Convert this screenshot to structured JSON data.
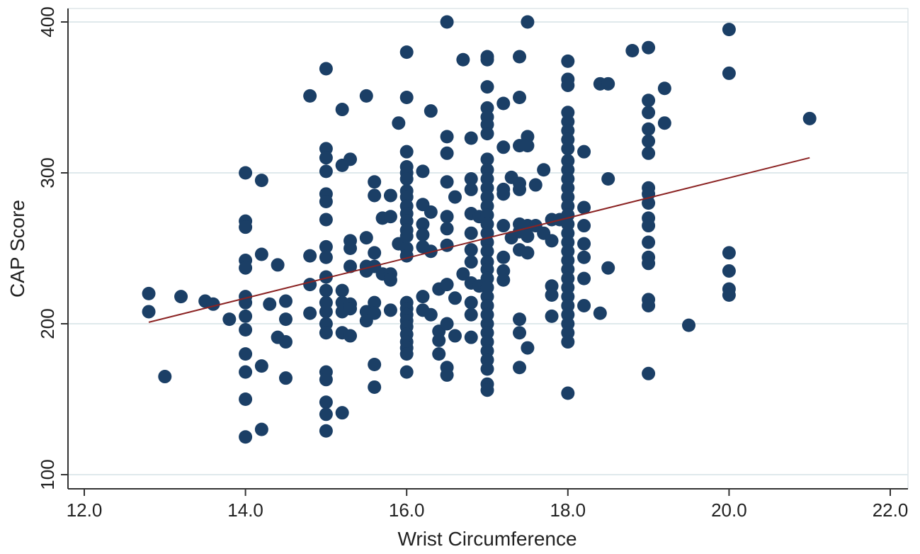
{
  "chart_data": {
    "type": "scatter",
    "title": "",
    "xlabel": "Wrist Circumference",
    "ylabel": "CAP Score",
    "xlim": [
      12.0,
      22.0
    ],
    "ylim": [
      100,
      400
    ],
    "xticks": [
      12.0,
      14.0,
      16.0,
      18.0,
      20.0,
      22.0
    ],
    "xtick_labels": [
      "12.0",
      "14.0",
      "16.0",
      "18.0",
      "20.0",
      "22.0"
    ],
    "yticks": [
      100,
      200,
      300,
      400
    ],
    "ytick_labels": [
      "100",
      "200",
      "300",
      "400"
    ],
    "grid": true,
    "legend": "none",
    "colors": {
      "points": "#1b3f66",
      "fit_line": "#8b2323",
      "grid": "#dfe9ec",
      "axis": "#333333"
    },
    "fit_line": {
      "x": [
        12.8,
        21.0
      ],
      "y": [
        201,
        310
      ]
    },
    "series": [
      {
        "points": [
          [
            12.8,
            220
          ],
          [
            12.8,
            208
          ],
          [
            13.0,
            165
          ],
          [
            13.2,
            218
          ],
          [
            13.5,
            215
          ],
          [
            13.6,
            213
          ],
          [
            13.8,
            203
          ],
          [
            14.0,
            300
          ],
          [
            14.0,
            268
          ],
          [
            14.0,
            264
          ],
          [
            14.0,
            242
          ],
          [
            14.0,
            237
          ],
          [
            14.0,
            218
          ],
          [
            14.0,
            214
          ],
          [
            14.0,
            205
          ],
          [
            14.0,
            196
          ],
          [
            14.0,
            180
          ],
          [
            14.0,
            168
          ],
          [
            14.0,
            150
          ],
          [
            14.0,
            125
          ],
          [
            14.2,
            295
          ],
          [
            14.2,
            246
          ],
          [
            14.2,
            172
          ],
          [
            14.2,
            130
          ],
          [
            14.3,
            213
          ],
          [
            14.4,
            239
          ],
          [
            14.4,
            191
          ],
          [
            14.5,
            215
          ],
          [
            14.5,
            203
          ],
          [
            14.5,
            188
          ],
          [
            14.5,
            164
          ],
          [
            14.8,
            351
          ],
          [
            14.8,
            245
          ],
          [
            14.8,
            226
          ],
          [
            14.8,
            207
          ],
          [
            15.0,
            369
          ],
          [
            15.0,
            316
          ],
          [
            15.0,
            310
          ],
          [
            15.0,
            301
          ],
          [
            15.0,
            286
          ],
          [
            15.0,
            281
          ],
          [
            15.0,
            269
          ],
          [
            15.0,
            251
          ],
          [
            15.0,
            244
          ],
          [
            15.0,
            231
          ],
          [
            15.0,
            222
          ],
          [
            15.0,
            214
          ],
          [
            15.0,
            208
          ],
          [
            15.0,
            200
          ],
          [
            15.0,
            194
          ],
          [
            15.0,
            168
          ],
          [
            15.0,
            163
          ],
          [
            15.0,
            148
          ],
          [
            15.0,
            140
          ],
          [
            15.0,
            129
          ],
          [
            15.2,
            342
          ],
          [
            15.2,
            305
          ],
          [
            15.2,
            222
          ],
          [
            15.2,
            214
          ],
          [
            15.2,
            208
          ],
          [
            15.2,
            194
          ],
          [
            15.2,
            141
          ],
          [
            15.3,
            309
          ],
          [
            15.3,
            255
          ],
          [
            15.3,
            250
          ],
          [
            15.3,
            238
          ],
          [
            15.3,
            213
          ],
          [
            15.3,
            210
          ],
          [
            15.3,
            192
          ],
          [
            15.5,
            351
          ],
          [
            15.5,
            257
          ],
          [
            15.5,
            238
          ],
          [
            15.5,
            235
          ],
          [
            15.5,
            208
          ],
          [
            15.5,
            202
          ],
          [
            15.6,
            294
          ],
          [
            15.6,
            285
          ],
          [
            15.6,
            247
          ],
          [
            15.6,
            238
          ],
          [
            15.6,
            214
          ],
          [
            15.6,
            207
          ],
          [
            15.6,
            173
          ],
          [
            15.6,
            158
          ],
          [
            15.7,
            270
          ],
          [
            15.7,
            233
          ],
          [
            15.8,
            285
          ],
          [
            15.8,
            271
          ],
          [
            15.8,
            233
          ],
          [
            15.8,
            229
          ],
          [
            15.8,
            209
          ],
          [
            15.9,
            333
          ],
          [
            15.9,
            253
          ],
          [
            16.0,
            380
          ],
          [
            16.0,
            350
          ],
          [
            16.0,
            314
          ],
          [
            16.0,
            304
          ],
          [
            16.0,
            300
          ],
          [
            16.0,
            296
          ],
          [
            16.0,
            288
          ],
          [
            16.0,
            284
          ],
          [
            16.0,
            278
          ],
          [
            16.0,
            273
          ],
          [
            16.0,
            268
          ],
          [
            16.0,
            262
          ],
          [
            16.0,
            258
          ],
          [
            16.0,
            250
          ],
          [
            16.0,
            245
          ],
          [
            16.0,
            214
          ],
          [
            16.0,
            210
          ],
          [
            16.0,
            206
          ],
          [
            16.0,
            202
          ],
          [
            16.0,
            198
          ],
          [
            16.0,
            193
          ],
          [
            16.0,
            188
          ],
          [
            16.0,
            184
          ],
          [
            16.0,
            180
          ],
          [
            16.0,
            168
          ],
          [
            16.2,
            301
          ],
          [
            16.2,
            279
          ],
          [
            16.2,
            266
          ],
          [
            16.2,
            259
          ],
          [
            16.2,
            251
          ],
          [
            16.2,
            218
          ],
          [
            16.2,
            209
          ],
          [
            16.3,
            341
          ],
          [
            16.3,
            274
          ],
          [
            16.3,
            248
          ],
          [
            16.3,
            206
          ],
          [
            16.4,
            223
          ],
          [
            16.4,
            195
          ],
          [
            16.4,
            189
          ],
          [
            16.4,
            180
          ],
          [
            16.5,
            400
          ],
          [
            16.5,
            324
          ],
          [
            16.5,
            313
          ],
          [
            16.5,
            294
          ],
          [
            16.5,
            271
          ],
          [
            16.5,
            263
          ],
          [
            16.5,
            252
          ],
          [
            16.5,
            226
          ],
          [
            16.5,
            200
          ],
          [
            16.5,
            171
          ],
          [
            16.5,
            166
          ],
          [
            16.6,
            284
          ],
          [
            16.6,
            217
          ],
          [
            16.6,
            192
          ],
          [
            16.7,
            375
          ],
          [
            16.7,
            233
          ],
          [
            16.8,
            323
          ],
          [
            16.8,
            296
          ],
          [
            16.8,
            289
          ],
          [
            16.8,
            273
          ],
          [
            16.8,
            260
          ],
          [
            16.8,
            249
          ],
          [
            16.8,
            241
          ],
          [
            16.8,
            227
          ],
          [
            16.8,
            214
          ],
          [
            16.8,
            206
          ],
          [
            16.8,
            191
          ],
          [
            16.9,
            271
          ],
          [
            16.9,
            225
          ],
          [
            17.0,
            377
          ],
          [
            17.0,
            375
          ],
          [
            17.0,
            357
          ],
          [
            17.0,
            343
          ],
          [
            17.0,
            337
          ],
          [
            17.0,
            332
          ],
          [
            17.0,
            326
          ],
          [
            17.0,
            309
          ],
          [
            17.0,
            302
          ],
          [
            17.0,
            296
          ],
          [
            17.0,
            290
          ],
          [
            17.0,
            284
          ],
          [
            17.0,
            278
          ],
          [
            17.0,
            272
          ],
          [
            17.0,
            266
          ],
          [
            17.0,
            260
          ],
          [
            17.0,
            254
          ],
          [
            17.0,
            248
          ],
          [
            17.0,
            241
          ],
          [
            17.0,
            236
          ],
          [
            17.0,
            230
          ],
          [
            17.0,
            224
          ],
          [
            17.0,
            218
          ],
          [
            17.0,
            212
          ],
          [
            17.0,
            206
          ],
          [
            17.0,
            200
          ],
          [
            17.0,
            194
          ],
          [
            17.0,
            188
          ],
          [
            17.0,
            182
          ],
          [
            17.0,
            176
          ],
          [
            17.0,
            170
          ],
          [
            17.0,
            160
          ],
          [
            17.0,
            156
          ],
          [
            17.2,
            346
          ],
          [
            17.2,
            317
          ],
          [
            17.2,
            289
          ],
          [
            17.2,
            286
          ],
          [
            17.2,
            265
          ],
          [
            17.2,
            244
          ],
          [
            17.2,
            235
          ],
          [
            17.2,
            229
          ],
          [
            17.3,
            297
          ],
          [
            17.3,
            257
          ],
          [
            17.4,
            377
          ],
          [
            17.4,
            350
          ],
          [
            17.4,
            318
          ],
          [
            17.4,
            293
          ],
          [
            17.4,
            289
          ],
          [
            17.4,
            266
          ],
          [
            17.4,
            261
          ],
          [
            17.4,
            249
          ],
          [
            17.4,
            203
          ],
          [
            17.4,
            194
          ],
          [
            17.4,
            171
          ],
          [
            17.5,
            400
          ],
          [
            17.5,
            324
          ],
          [
            17.5,
            318
          ],
          [
            17.5,
            265
          ],
          [
            17.5,
            258
          ],
          [
            17.5,
            247
          ],
          [
            17.5,
            184
          ],
          [
            17.6,
            292
          ],
          [
            17.6,
            265
          ],
          [
            17.7,
            302
          ],
          [
            17.7,
            260
          ],
          [
            17.8,
            269
          ],
          [
            17.8,
            255
          ],
          [
            17.8,
            225
          ],
          [
            17.8,
            219
          ],
          [
            17.8,
            205
          ],
          [
            17.9,
            269
          ],
          [
            18.0,
            374
          ],
          [
            18.0,
            362
          ],
          [
            18.0,
            358
          ],
          [
            18.0,
            340
          ],
          [
            18.0,
            334
          ],
          [
            18.0,
            328
          ],
          [
            18.0,
            322
          ],
          [
            18.0,
            316
          ],
          [
            18.0,
            308
          ],
          [
            18.0,
            302
          ],
          [
            18.0,
            296
          ],
          [
            18.0,
            290
          ],
          [
            18.0,
            284
          ],
          [
            18.0,
            278
          ],
          [
            18.0,
            272
          ],
          [
            18.0,
            266
          ],
          [
            18.0,
            260
          ],
          [
            18.0,
            254
          ],
          [
            18.0,
            248
          ],
          [
            18.0,
            242
          ],
          [
            18.0,
            236
          ],
          [
            18.0,
            230
          ],
          [
            18.0,
            224
          ],
          [
            18.0,
            218
          ],
          [
            18.0,
            212
          ],
          [
            18.0,
            206
          ],
          [
            18.0,
            200
          ],
          [
            18.0,
            194
          ],
          [
            18.0,
            188
          ],
          [
            18.0,
            154
          ],
          [
            18.2,
            314
          ],
          [
            18.2,
            277
          ],
          [
            18.2,
            265
          ],
          [
            18.2,
            253
          ],
          [
            18.2,
            244
          ],
          [
            18.2,
            230
          ],
          [
            18.2,
            212
          ],
          [
            18.4,
            359
          ],
          [
            18.4,
            207
          ],
          [
            18.5,
            359
          ],
          [
            18.5,
            296
          ],
          [
            18.5,
            237
          ],
          [
            18.8,
            381
          ],
          [
            19.0,
            383
          ],
          [
            19.0,
            348
          ],
          [
            19.0,
            340
          ],
          [
            19.0,
            329
          ],
          [
            19.0,
            321
          ],
          [
            19.0,
            313
          ],
          [
            19.0,
            290
          ],
          [
            19.0,
            286
          ],
          [
            19.0,
            280
          ],
          [
            19.0,
            270
          ],
          [
            19.0,
            265
          ],
          [
            19.0,
            254
          ],
          [
            19.0,
            244
          ],
          [
            19.0,
            240
          ],
          [
            19.0,
            216
          ],
          [
            19.0,
            212
          ],
          [
            19.0,
            167
          ],
          [
            19.2,
            356
          ],
          [
            19.2,
            333
          ],
          [
            19.5,
            199
          ],
          [
            20.0,
            395
          ],
          [
            20.0,
            366
          ],
          [
            20.0,
            247
          ],
          [
            20.0,
            235
          ],
          [
            20.0,
            223
          ],
          [
            20.0,
            219
          ],
          [
            21.0,
            336
          ]
        ]
      }
    ]
  }
}
